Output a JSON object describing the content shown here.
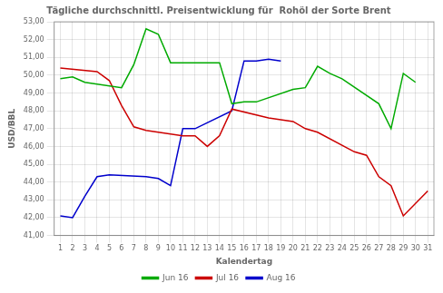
{
  "chart_data": {
    "type": "line",
    "title": "Tägliche durchschnittl. Preisentwicklung für  Rohöl der Sorte Brent",
    "x_label": "Kalendertag",
    "y_label": "USD/BBL",
    "xlim": [
      0.5,
      31.5
    ],
    "xticks": [
      1,
      2,
      3,
      4,
      5,
      6,
      7,
      8,
      9,
      10,
      11,
      12,
      13,
      14,
      15,
      16,
      17,
      18,
      19,
      20,
      21,
      22,
      23,
      24,
      25,
      26,
      27,
      28,
      29,
      30,
      31
    ],
    "ylim": [
      41.0,
      53.0
    ],
    "yticks": [
      {
        "value": 41.0,
        "label": "41,00"
      },
      {
        "value": 42.0,
        "label": "42,00"
      },
      {
        "value": 43.0,
        "label": "43,00"
      },
      {
        "value": 44.0,
        "label": "44,00"
      },
      {
        "value": 45.0,
        "label": "45,00"
      },
      {
        "value": 46.0,
        "label": "46,00"
      },
      {
        "value": 47.0,
        "label": "47,00"
      },
      {
        "value": 48.0,
        "label": "48,00"
      },
      {
        "value": 49.0,
        "label": "49,00"
      },
      {
        "value": 50.0,
        "label": "50,00"
      },
      {
        "value": 51.0,
        "label": "51,00"
      },
      {
        "value": 52.0,
        "label": "52,00"
      },
      {
        "value": 53.0,
        "label": "53,00"
      }
    ],
    "grid": true,
    "legend": "bottom",
    "series": [
      {
        "name": "Jun 16",
        "color": "#00AA00",
        "x": [
          1,
          2,
          3,
          6,
          7,
          8,
          9,
          10,
          13,
          14,
          15,
          16,
          17,
          20,
          21,
          22,
          23,
          24,
          27,
          28,
          29,
          30
        ],
        "values": [
          49.8,
          49.9,
          49.6,
          49.3,
          50.6,
          52.6,
          52.3,
          50.7,
          50.7,
          50.7,
          48.4,
          48.5,
          48.5,
          49.2,
          49.3,
          50.5,
          50.1,
          49.8,
          48.4,
          47.0,
          50.1,
          49.6
        ]
      },
      {
        "name": "Jul 16",
        "color": "#CC0000",
        "x": [
          1,
          4,
          5,
          6,
          7,
          8,
          11,
          12,
          13,
          14,
          15,
          18,
          19,
          20,
          21,
          22,
          25,
          26,
          27,
          28,
          29,
          31
        ],
        "values": [
          50.4,
          50.2,
          49.7,
          48.3,
          47.1,
          46.9,
          46.6,
          46.6,
          46.0,
          46.6,
          48.1,
          47.6,
          47.5,
          47.4,
          47.0,
          46.8,
          45.7,
          45.5,
          44.3,
          43.8,
          42.1,
          43.5
        ]
      },
      {
        "name": "Aug 16",
        "color": "#0000CC",
        "x": [
          1,
          2,
          3,
          4,
          5,
          8,
          9,
          10,
          11,
          12,
          15,
          16,
          17,
          18,
          19
        ],
        "values": [
          42.1,
          42.0,
          43.2,
          44.3,
          44.4,
          44.3,
          44.2,
          43.8,
          47.0,
          47.0,
          48.0,
          50.8,
          50.8,
          50.9,
          50.8
        ]
      }
    ]
  }
}
